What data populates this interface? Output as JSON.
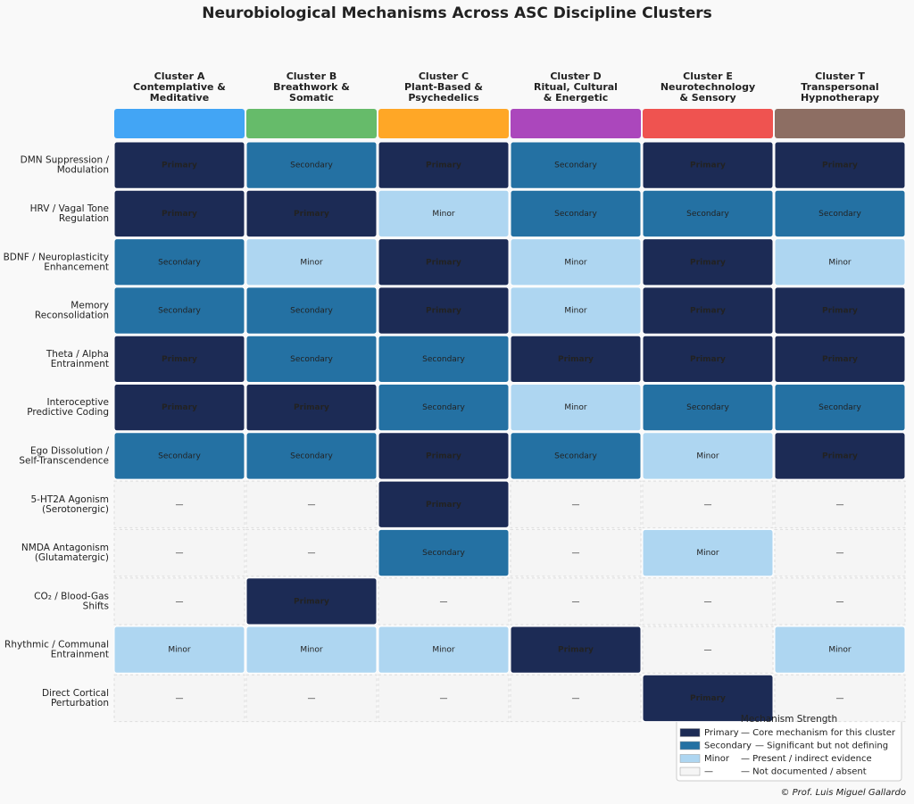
{
  "chart_data": {
    "type": "heatmap",
    "title": "Neurobiological Mechanisms Across ASC Discipline Clusters",
    "columns": [
      {
        "name": [
          "Cluster A",
          "Contemplative &",
          "Meditative"
        ],
        "color": "#42a5f5"
      },
      {
        "name": [
          "Cluster B",
          "Breathwork &",
          "Somatic"
        ],
        "color": "#66bb6a"
      },
      {
        "name": [
          "Cluster C",
          "Plant-Based &",
          "Psychedelics"
        ],
        "color": "#ffa726"
      },
      {
        "name": [
          "Cluster D",
          "Ritual, Cultural",
          "& Energetic"
        ],
        "color": "#ab47bc"
      },
      {
        "name": [
          "Cluster E",
          "Neurotechnology",
          "& Sensory"
        ],
        "color": "#ef5350"
      },
      {
        "name": [
          "Cluster T",
          "Transpersonal",
          "Hypnotherapy"
        ],
        "color": "#8d6e63"
      }
    ],
    "rows": [
      [
        "DMN Suppression /",
        "Modulation"
      ],
      [
        "HRV / Vagal Tone",
        "Regulation"
      ],
      [
        "BDNF / Neuroplasticity",
        "Enhancement"
      ],
      [
        "Memory",
        "Reconsolidation"
      ],
      [
        "Theta / Alpha",
        "Entrainment"
      ],
      [
        "Interoceptive",
        "Predictive Coding"
      ],
      [
        "Ego Dissolution /",
        "Self-Transcendence"
      ],
      [
        "5-HT2A Agonism",
        "(Serotonergic)"
      ],
      [
        "NMDA Antagonism",
        "(Glutamatergic)"
      ],
      [
        "CO₂ / Blood-Gas",
        "Shifts"
      ],
      [
        "Rhythmic / Communal",
        "Entrainment"
      ],
      [
        "Direct Cortical",
        "Perturbation"
      ]
    ],
    "cells": [
      [
        "Primary",
        "Secondary",
        "Primary",
        "Secondary",
        "Primary",
        "Primary"
      ],
      [
        "Primary",
        "Primary",
        "Minor",
        "Secondary",
        "Secondary",
        "Secondary"
      ],
      [
        "Secondary",
        "Minor",
        "Primary",
        "Minor",
        "Primary",
        "Minor"
      ],
      [
        "Secondary",
        "Secondary",
        "Primary",
        "Minor",
        "Primary",
        "Primary"
      ],
      [
        "Primary",
        "Secondary",
        "Secondary",
        "Primary",
        "Primary",
        "Primary"
      ],
      [
        "Primary",
        "Primary",
        "Secondary",
        "Minor",
        "Secondary",
        "Secondary"
      ],
      [
        "Secondary",
        "Secondary",
        "Primary",
        "Secondary",
        "Minor",
        "Primary"
      ],
      [
        "—",
        "—",
        "Primary",
        "—",
        "—",
        "—"
      ],
      [
        "—",
        "—",
        "Secondary",
        "—",
        "Minor",
        "—"
      ],
      [
        "—",
        "Primary",
        "—",
        "—",
        "—",
        "—"
      ],
      [
        "Minor",
        "Minor",
        "Minor",
        "Primary",
        "—",
        "Minor"
      ],
      [
        "—",
        "—",
        "—",
        "—",
        "Primary",
        "—"
      ]
    ],
    "legend_title": "Mechanism Strength",
    "levels": [
      {
        "name": "Primary",
        "description": "— Core mechanism for this cluster",
        "color": "#1c2b55",
        "text_color": "#ffffff"
      },
      {
        "name": "Secondary",
        "description": "— Significant but not defining",
        "color": "#2471a3",
        "text_color": "#dde8f3"
      },
      {
        "name": "Minor",
        "description": "— Present / indirect evidence",
        "color": "#aed6f1",
        "text_color": "#555555"
      },
      {
        "name": "—",
        "description": "— Not documented / absent",
        "color": "#f5f5f5",
        "text_color": "#aaaaaa"
      }
    ],
    "credit": "© Prof. Luis Miguel Gallardo"
  }
}
